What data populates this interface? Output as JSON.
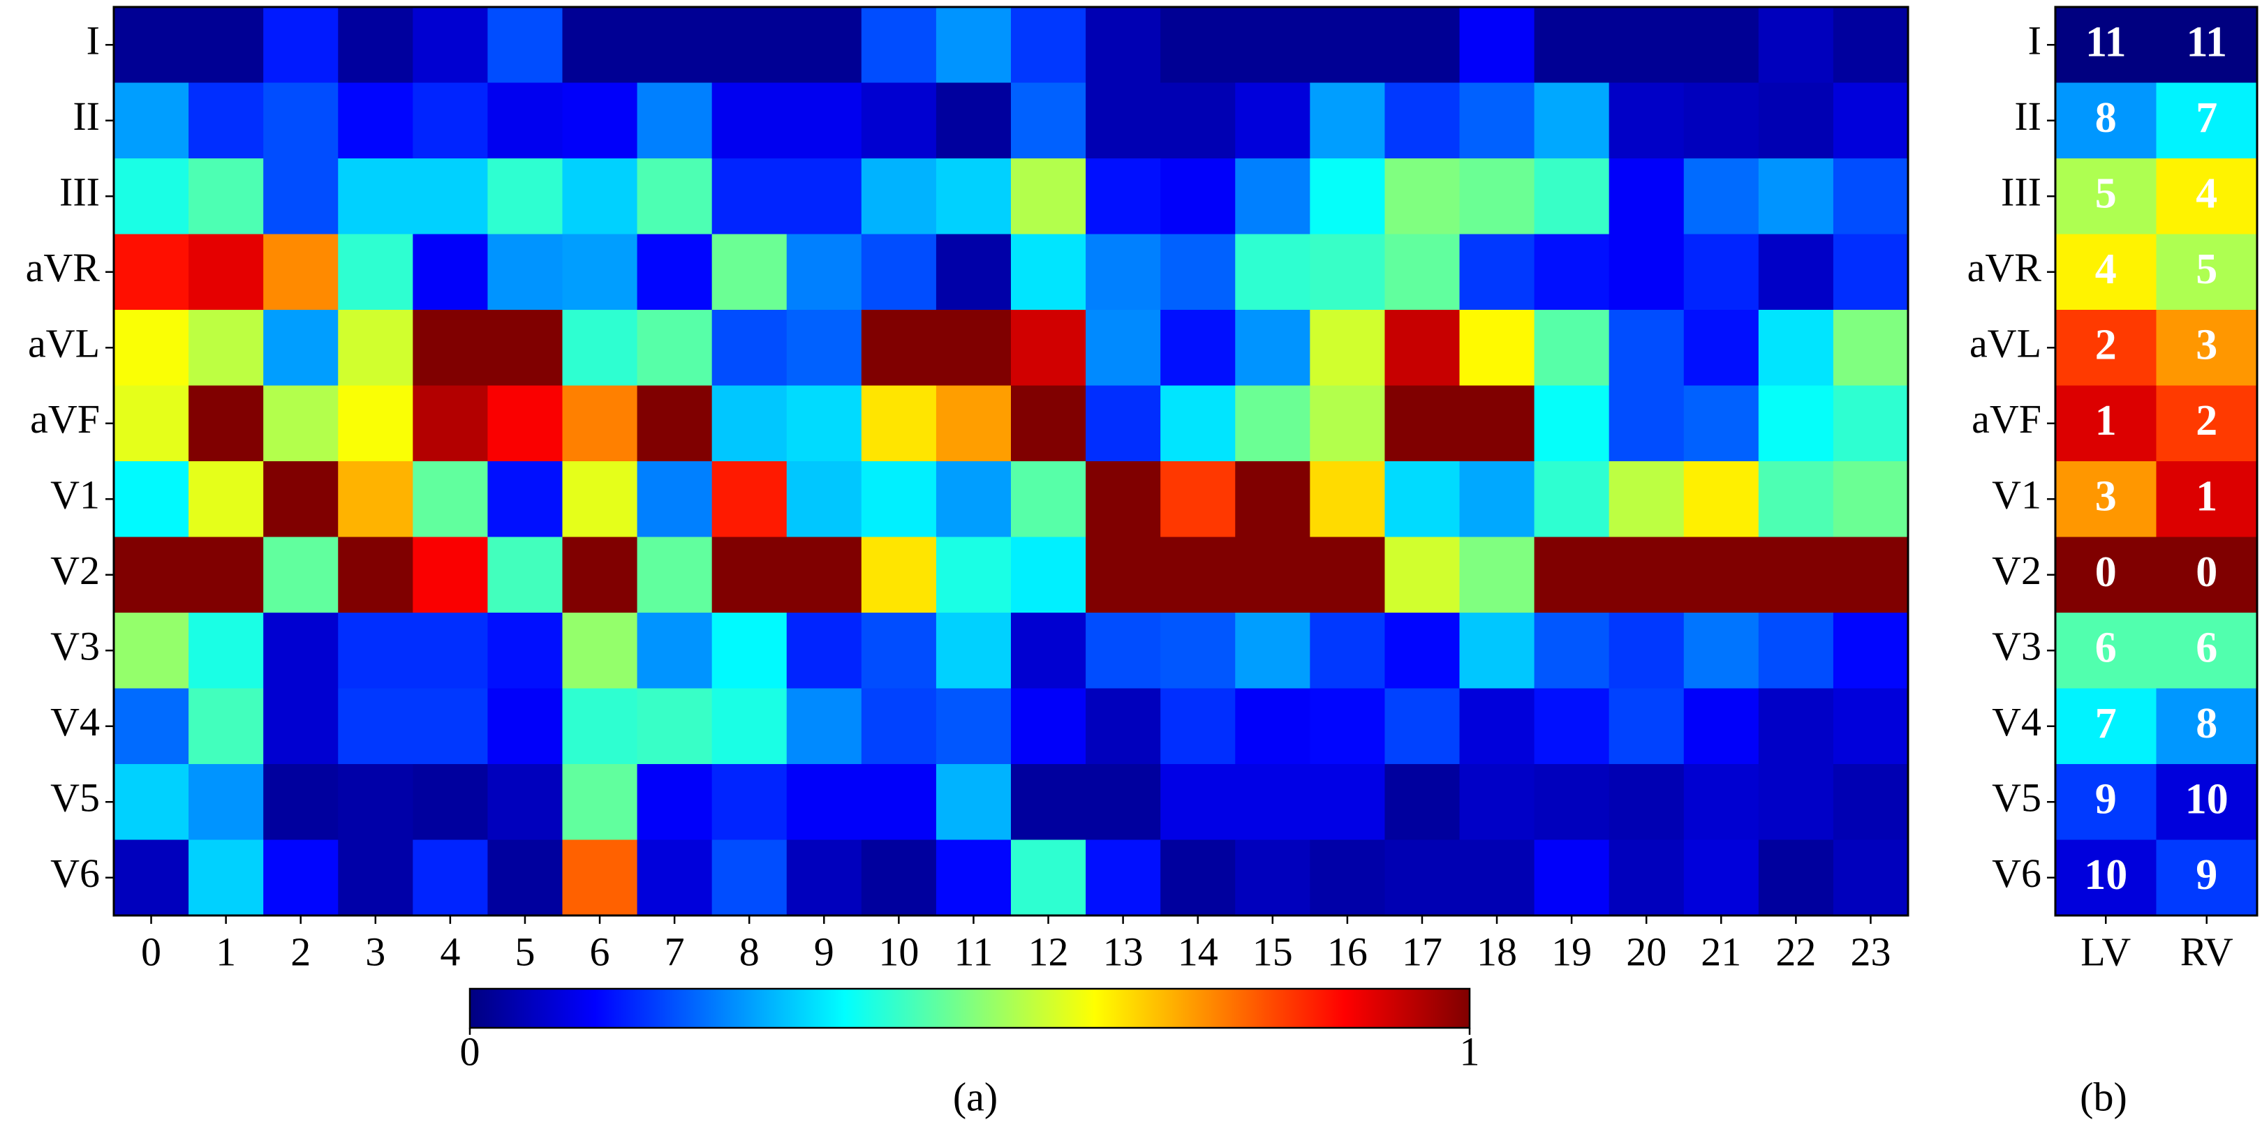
{
  "chart_data": [
    {
      "type": "heatmap",
      "caption": "(a)",
      "colormap": "jet",
      "x": [
        0,
        1,
        2,
        3,
        4,
        5,
        6,
        7,
        8,
        9,
        10,
        11,
        12,
        13,
        14,
        15,
        16,
        17,
        18,
        19,
        20,
        21,
        22,
        23
      ],
      "y": [
        "I",
        "II",
        "III",
        "aVR",
        "aVL",
        "aVF",
        "V1",
        "V2",
        "V3",
        "V4",
        "V5",
        "V6"
      ],
      "values": [
        [
          0.02,
          0.02,
          0.15,
          0.03,
          0.08,
          0.2,
          0.02,
          0.02,
          0.02,
          0.02,
          0.2,
          0.27,
          0.18,
          0.05,
          0.02,
          0.02,
          0.02,
          0.02,
          0.12,
          0.02,
          0.02,
          0.02,
          0.06,
          0.03
        ],
        [
          0.28,
          0.17,
          0.2,
          0.13,
          0.16,
          0.11,
          0.12,
          0.25,
          0.11,
          0.11,
          0.08,
          0.03,
          0.22,
          0.05,
          0.05,
          0.09,
          0.28,
          0.18,
          0.22,
          0.29,
          0.07,
          0.06,
          0.05,
          0.09
        ],
        [
          0.4,
          0.45,
          0.2,
          0.33,
          0.33,
          0.42,
          0.33,
          0.45,
          0.16,
          0.16,
          0.3,
          0.33,
          0.55,
          0.14,
          0.12,
          0.25,
          0.38,
          0.5,
          0.48,
          0.43,
          0.12,
          0.23,
          0.27,
          0.2
        ],
        [
          0.86,
          0.9,
          0.74,
          0.42,
          0.12,
          0.27,
          0.28,
          0.13,
          0.48,
          0.25,
          0.2,
          0.04,
          0.35,
          0.25,
          0.22,
          0.42,
          0.43,
          0.47,
          0.18,
          0.14,
          0.12,
          0.16,
          0.07,
          0.17
        ],
        [
          0.62,
          0.56,
          0.28,
          0.58,
          1,
          1,
          0.42,
          0.46,
          0.2,
          0.22,
          1,
          1,
          0.92,
          0.26,
          0.14,
          0.27,
          0.58,
          0.93,
          0.63,
          0.46,
          0.2,
          0.14,
          0.35,
          0.5
        ],
        [
          0.6,
          1,
          0.55,
          0.62,
          0.95,
          0.88,
          0.75,
          1,
          0.32,
          0.34,
          0.65,
          0.72,
          1,
          0.17,
          0.35,
          0.48,
          0.55,
          1,
          1,
          0.38,
          0.2,
          0.22,
          0.38,
          0.42
        ],
        [
          0.37,
          0.6,
          1,
          0.7,
          0.47,
          0.14,
          0.6,
          0.25,
          0.85,
          0.32,
          0.36,
          0.28,
          0.46,
          1,
          0.82,
          1,
          0.66,
          0.34,
          0.29,
          0.42,
          0.56,
          0.64,
          0.45,
          0.48
        ],
        [
          1,
          1,
          0.47,
          1,
          0.88,
          0.44,
          1,
          0.47,
          1,
          1,
          0.65,
          0.4,
          0.36,
          1,
          1,
          1,
          1,
          0.58,
          0.5,
          1,
          1,
          1,
          1,
          1
        ],
        [
          0.52,
          0.4,
          0.08,
          0.17,
          0.17,
          0.14,
          0.52,
          0.27,
          0.37,
          0.16,
          0.2,
          0.33,
          0.08,
          0.2,
          0.21,
          0.28,
          0.18,
          0.13,
          0.32,
          0.21,
          0.18,
          0.24,
          0.2,
          0.13
        ],
        [
          0.23,
          0.44,
          0.08,
          0.18,
          0.18,
          0.12,
          0.42,
          0.43,
          0.4,
          0.26,
          0.19,
          0.21,
          0.12,
          0.06,
          0.17,
          0.12,
          0.13,
          0.19,
          0.09,
          0.14,
          0.19,
          0.12,
          0.07,
          0.09
        ],
        [
          0.33,
          0.27,
          0.03,
          0.04,
          0.03,
          0.06,
          0.47,
          0.12,
          0.16,
          0.12,
          0.12,
          0.3,
          0.03,
          0.03,
          0.1,
          0.1,
          0.1,
          0.03,
          0.07,
          0.06,
          0.05,
          0.08,
          0.07,
          0.05
        ],
        [
          0.06,
          0.33,
          0.13,
          0.04,
          0.16,
          0.03,
          0.78,
          0.09,
          0.2,
          0.06,
          0.03,
          0.13,
          0.42,
          0.14,
          0.03,
          0.06,
          0.04,
          0.05,
          0.05,
          0.12,
          0.06,
          0.09,
          0.03,
          0.06
        ]
      ],
      "zlim": [
        0,
        1
      ],
      "zticks": [
        0,
        1
      ],
      "colorbar": true
    },
    {
      "type": "heatmap",
      "caption": "(b)",
      "colormap": "jet_r",
      "x": [
        "LV",
        "RV"
      ],
      "y": [
        "I",
        "II",
        "III",
        "aVR",
        "aVL",
        "aVF",
        "V1",
        "V2",
        "V3",
        "V4",
        "V5",
        "V6"
      ],
      "values": [
        [
          11,
          11
        ],
        [
          8,
          7
        ],
        [
          5,
          4
        ],
        [
          4,
          5
        ],
        [
          2,
          3
        ],
        [
          1,
          2
        ],
        [
          3,
          1
        ],
        [
          0,
          0
        ],
        [
          6,
          6
        ],
        [
          7,
          8
        ],
        [
          9,
          10
        ],
        [
          10,
          9
        ]
      ],
      "zlim": [
        0,
        11
      ],
      "show_values": true,
      "colorbar": false
    }
  ]
}
